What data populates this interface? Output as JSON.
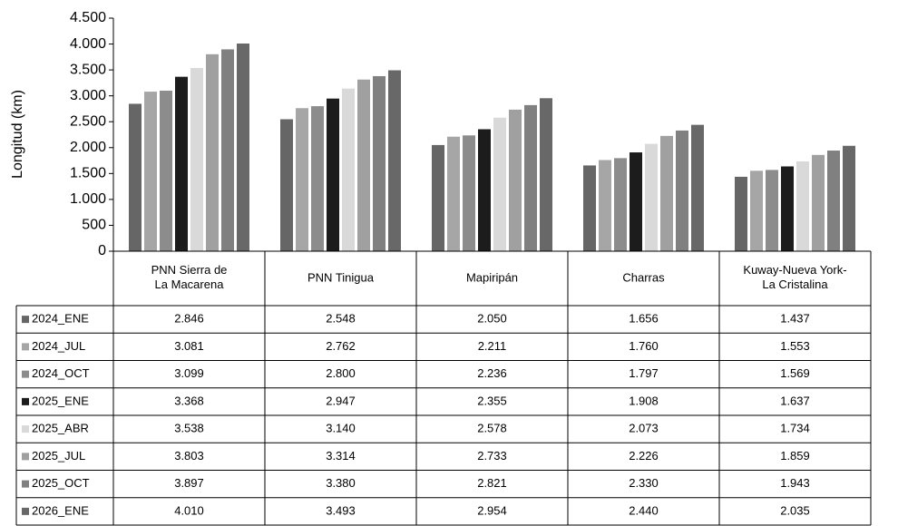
{
  "chart_data": {
    "type": "bar",
    "y_label": "Longitud (km)",
    "categories": [
      "PNN Sierra de La Macarena",
      "PNN Tinigua",
      "Mapiripán",
      "Charras",
      "Kuway-Nueva York-La Cristalina"
    ],
    "series": [
      {
        "name": "2024_ENE",
        "color": "#666666",
        "values": [
          2846,
          2548,
          2050,
          1656,
          1437
        ],
        "value_labels": [
          "2.846",
          "2.548",
          "2.050",
          "1.656",
          "1.437"
        ]
      },
      {
        "name": "2024_JUL",
        "color": "#a6a6a6",
        "values": [
          3081,
          2762,
          2211,
          1760,
          1553
        ],
        "value_labels": [
          "3.081",
          "2.762",
          "2.211",
          "1.760",
          "1.553"
        ]
      },
      {
        "name": "2024_OCT",
        "color": "#8c8c8c",
        "values": [
          3099,
          2800,
          2236,
          1797,
          1569
        ],
        "value_labels": [
          "3.099",
          "2.800",
          "2.236",
          "1.797",
          "1.569"
        ]
      },
      {
        "name": "2025_ENE",
        "color": "#1c1c1c",
        "values": [
          3368,
          2947,
          2355,
          1908,
          1637
        ],
        "value_labels": [
          "3.368",
          "2.947",
          "2.355",
          "1.908",
          "1.637"
        ]
      },
      {
        "name": "2025_ABR",
        "color": "#d9d9d9",
        "values": [
          3538,
          3140,
          2578,
          2073,
          1734
        ],
        "value_labels": [
          "3.538",
          "3.140",
          "2.578",
          "2.073",
          "1.734"
        ]
      },
      {
        "name": "2025_JUL",
        "color": "#a0a0a0",
        "values": [
          3803,
          3314,
          2733,
          2226,
          1859
        ],
        "value_labels": [
          "3.803",
          "3.314",
          "2.733",
          "2.226",
          "1.859"
        ]
      },
      {
        "name": "2025_OCT",
        "color": "#808080",
        "values": [
          3897,
          3380,
          2821,
          2330,
          1943
        ],
        "value_labels": [
          "3.897",
          "3.380",
          "2.821",
          "2.330",
          "1.943"
        ]
      },
      {
        "name": "2026_ENE",
        "color": "#686868",
        "values": [
          4010,
          3493,
          2954,
          2440,
          2035
        ],
        "value_labels": [
          "4.010",
          "3.493",
          "2.954",
          "2.440",
          "2.035"
        ]
      }
    ],
    "ylim": [
      0,
      4500
    ],
    "yticks": [
      0,
      500,
      {
        "value": 1000,
        "label": "1.000"
      },
      {
        "value": 1500,
        "label": "1.500"
      },
      {
        "value": 2000,
        "label": "2.000"
      },
      {
        "value": 2500,
        "label": "2.500"
      },
      {
        "value": 3000,
        "label": "3.000"
      },
      {
        "value": 3500,
        "label": "3.500"
      },
      {
        "value": 4000,
        "label": "4.000"
      },
      {
        "value": 4500,
        "label": "4.500"
      }
    ]
  }
}
